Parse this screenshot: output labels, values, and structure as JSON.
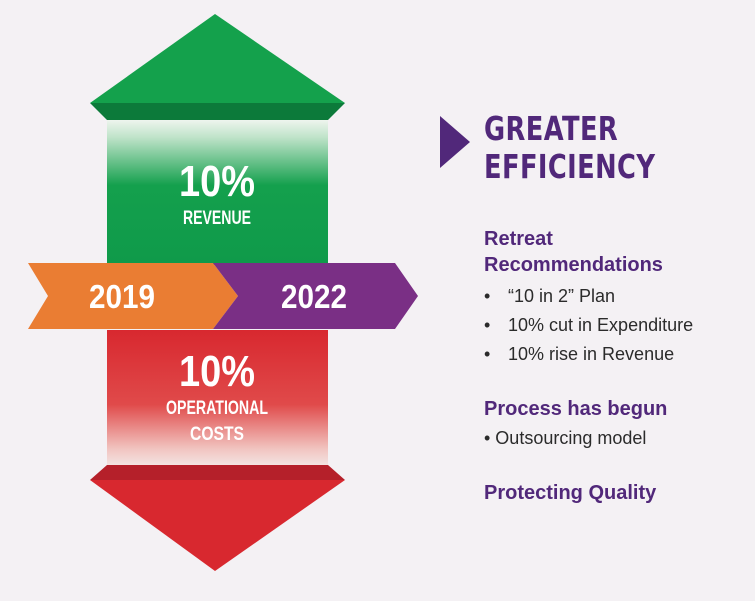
{
  "diagram": {
    "up_value": "10%",
    "up_label": "REVENUE",
    "down_value": "10%",
    "down_label_line1": "OPERATIONAL",
    "down_label_line2": "COSTS",
    "year_start": "2019",
    "year_end": "2022",
    "colors": {
      "green": "#0f9a4a",
      "red": "#d8282f",
      "orange": "#ea7d33",
      "purple": "#7a2f85"
    }
  },
  "headline": {
    "line1": "GREATER",
    "line2": "EFFICIENCY"
  },
  "sections": [
    {
      "heading_line1": "Retreat",
      "heading_line2": "Recommendations",
      "bullets": [
        "“10 in 2” Plan",
        "10% cut in Expenditure",
        "10% rise in Revenue"
      ]
    },
    {
      "heading": "Process has begun",
      "item": "• Outsourcing model"
    },
    {
      "heading": "Protecting Quality"
    }
  ]
}
